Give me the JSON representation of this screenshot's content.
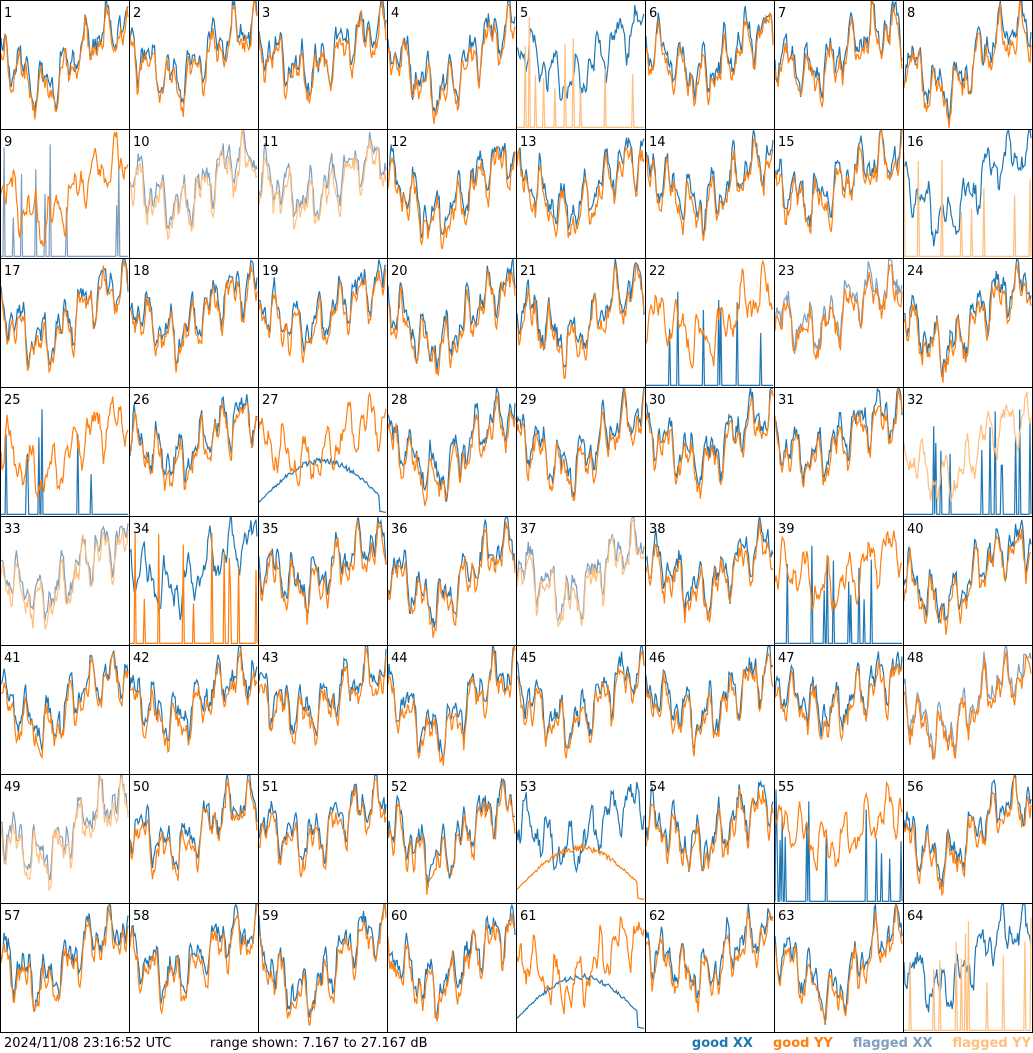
{
  "panels": [
    {
      "label": "1",
      "xx": "good",
      "yy": "good",
      "xx_mode": "normal",
      "yy_mode": "normal"
    },
    {
      "label": "2",
      "xx": "good",
      "yy": "good",
      "xx_mode": "normal",
      "yy_mode": "normal"
    },
    {
      "label": "3",
      "xx": "good",
      "yy": "good",
      "xx_mode": "normal",
      "yy_mode": "normal"
    },
    {
      "label": "4",
      "xx": "good",
      "yy": "good",
      "xx_mode": "normal",
      "yy_mode": "normal"
    },
    {
      "label": "5",
      "xx": "good",
      "yy": "flagged",
      "xx_mode": "normal",
      "yy_mode": "spiky"
    },
    {
      "label": "6",
      "xx": "good",
      "yy": "good",
      "xx_mode": "normal",
      "yy_mode": "normal"
    },
    {
      "label": "7",
      "xx": "good",
      "yy": "good",
      "xx_mode": "normal",
      "yy_mode": "normal"
    },
    {
      "label": "8",
      "xx": "good",
      "yy": "good",
      "xx_mode": "normal",
      "yy_mode": "normal"
    },
    {
      "label": "9",
      "xx": "flagged",
      "yy": "good",
      "xx_mode": "spiky",
      "yy_mode": "normal"
    },
    {
      "label": "10",
      "xx": "flagged",
      "yy": "flagged",
      "xx_mode": "normal",
      "yy_mode": "normal"
    },
    {
      "label": "11",
      "xx": "flagged",
      "yy": "flagged",
      "xx_mode": "normal",
      "yy_mode": "normal"
    },
    {
      "label": "12",
      "xx": "good",
      "yy": "good",
      "xx_mode": "normal",
      "yy_mode": "normal"
    },
    {
      "label": "13",
      "xx": "good",
      "yy": "good",
      "xx_mode": "normal",
      "yy_mode": "normal"
    },
    {
      "label": "14",
      "xx": "good",
      "yy": "good",
      "xx_mode": "normal",
      "yy_mode": "normal"
    },
    {
      "label": "15",
      "xx": "good",
      "yy": "good",
      "xx_mode": "normal",
      "yy_mode": "normal"
    },
    {
      "label": "16",
      "xx": "good",
      "yy": "flagged",
      "xx_mode": "normal",
      "yy_mode": "spiky"
    },
    {
      "label": "17",
      "xx": "good",
      "yy": "good",
      "xx_mode": "normal",
      "yy_mode": "normal"
    },
    {
      "label": "18",
      "xx": "good",
      "yy": "good",
      "xx_mode": "normal",
      "yy_mode": "normal"
    },
    {
      "label": "19",
      "xx": "good",
      "yy": "good",
      "xx_mode": "normal",
      "yy_mode": "normal"
    },
    {
      "label": "20",
      "xx": "good",
      "yy": "good",
      "xx_mode": "normal",
      "yy_mode": "normal"
    },
    {
      "label": "21",
      "xx": "good",
      "yy": "good",
      "xx_mode": "normal",
      "yy_mode": "normal"
    },
    {
      "label": "22",
      "xx": "good",
      "yy": "good",
      "xx_mode": "spiky",
      "yy_mode": "normal"
    },
    {
      "label": "23",
      "xx": "flagged",
      "yy": "good",
      "xx_mode": "normal",
      "yy_mode": "normal"
    },
    {
      "label": "24",
      "xx": "good",
      "yy": "good",
      "xx_mode": "normal",
      "yy_mode": "normal"
    },
    {
      "label": "25",
      "xx": "good",
      "yy": "good",
      "xx_mode": "spiky",
      "yy_mode": "normal"
    },
    {
      "label": "26",
      "xx": "good",
      "yy": "good",
      "xx_mode": "normal",
      "yy_mode": "normal"
    },
    {
      "label": "27",
      "xx": "good",
      "yy": "good",
      "xx_mode": "smooth",
      "yy_mode": "normal"
    },
    {
      "label": "28",
      "xx": "good",
      "yy": "good",
      "xx_mode": "normal",
      "yy_mode": "normal"
    },
    {
      "label": "29",
      "xx": "good",
      "yy": "good",
      "xx_mode": "normal",
      "yy_mode": "normal"
    },
    {
      "label": "30",
      "xx": "good",
      "yy": "good",
      "xx_mode": "normal",
      "yy_mode": "normal"
    },
    {
      "label": "31",
      "xx": "good",
      "yy": "good",
      "xx_mode": "normal",
      "yy_mode": "normal"
    },
    {
      "label": "32",
      "xx": "good",
      "yy": "flagged",
      "xx_mode": "spiky",
      "yy_mode": "normal"
    },
    {
      "label": "33",
      "xx": "flagged",
      "yy": "flagged",
      "xx_mode": "normal",
      "yy_mode": "normal"
    },
    {
      "label": "34",
      "xx": "good",
      "yy": "good",
      "xx_mode": "normal",
      "yy_mode": "spiky"
    },
    {
      "label": "35",
      "xx": "good",
      "yy": "good",
      "xx_mode": "normal",
      "yy_mode": "normal"
    },
    {
      "label": "36",
      "xx": "good",
      "yy": "good",
      "xx_mode": "normal",
      "yy_mode": "normal"
    },
    {
      "label": "37",
      "xx": "flagged",
      "yy": "flagged",
      "xx_mode": "normal",
      "yy_mode": "normal"
    },
    {
      "label": "38",
      "xx": "good",
      "yy": "good",
      "xx_mode": "normal",
      "yy_mode": "normal"
    },
    {
      "label": "39",
      "xx": "good",
      "yy": "good",
      "xx_mode": "spiky",
      "yy_mode": "normal"
    },
    {
      "label": "40",
      "xx": "good",
      "yy": "good",
      "xx_mode": "normal",
      "yy_mode": "normal"
    },
    {
      "label": "41",
      "xx": "good",
      "yy": "good",
      "xx_mode": "normal",
      "yy_mode": "normal"
    },
    {
      "label": "42",
      "xx": "good",
      "yy": "good",
      "xx_mode": "normal",
      "yy_mode": "normal"
    },
    {
      "label": "43",
      "xx": "good",
      "yy": "good",
      "xx_mode": "normal",
      "yy_mode": "normal"
    },
    {
      "label": "44",
      "xx": "good",
      "yy": "good",
      "xx_mode": "normal",
      "yy_mode": "normal"
    },
    {
      "label": "45",
      "xx": "good",
      "yy": "good",
      "xx_mode": "normal",
      "yy_mode": "normal"
    },
    {
      "label": "46",
      "xx": "good",
      "yy": "good",
      "xx_mode": "normal",
      "yy_mode": "normal"
    },
    {
      "label": "47",
      "xx": "good",
      "yy": "good",
      "xx_mode": "normal",
      "yy_mode": "normal"
    },
    {
      "label": "48",
      "xx": "flagged",
      "yy": "good",
      "xx_mode": "normal",
      "yy_mode": "normal"
    },
    {
      "label": "49",
      "xx": "flagged",
      "yy": "flagged",
      "xx_mode": "normal",
      "yy_mode": "normal"
    },
    {
      "label": "50",
      "xx": "good",
      "yy": "good",
      "xx_mode": "normal",
      "yy_mode": "normal"
    },
    {
      "label": "51",
      "xx": "good",
      "yy": "good",
      "xx_mode": "normal",
      "yy_mode": "normal"
    },
    {
      "label": "52",
      "xx": "good",
      "yy": "good",
      "xx_mode": "normal",
      "yy_mode": "normal"
    },
    {
      "label": "53",
      "xx": "good",
      "yy": "good",
      "xx_mode": "normal",
      "yy_mode": "smooth"
    },
    {
      "label": "54",
      "xx": "good",
      "yy": "good",
      "xx_mode": "normal",
      "yy_mode": "normal"
    },
    {
      "label": "55",
      "xx": "good",
      "yy": "good",
      "xx_mode": "spiky",
      "yy_mode": "normal"
    },
    {
      "label": "56",
      "xx": "good",
      "yy": "good",
      "xx_mode": "normal",
      "yy_mode": "normal"
    },
    {
      "label": "57",
      "xx": "good",
      "yy": "good",
      "xx_mode": "normal",
      "yy_mode": "normal"
    },
    {
      "label": "58",
      "xx": "good",
      "yy": "good",
      "xx_mode": "normal",
      "yy_mode": "normal"
    },
    {
      "label": "59",
      "xx": "good",
      "yy": "good",
      "xx_mode": "normal",
      "yy_mode": "normal"
    },
    {
      "label": "60",
      "xx": "good",
      "yy": "good",
      "xx_mode": "normal",
      "yy_mode": "normal"
    },
    {
      "label": "61",
      "xx": "good",
      "yy": "good",
      "xx_mode": "smooth",
      "yy_mode": "normal"
    },
    {
      "label": "62",
      "xx": "good",
      "yy": "good",
      "xx_mode": "normal",
      "yy_mode": "normal"
    },
    {
      "label": "63",
      "xx": "good",
      "yy": "good",
      "xx_mode": "normal",
      "yy_mode": "normal"
    },
    {
      "label": "64",
      "xx": "good",
      "yy": "flagged",
      "xx_mode": "normal",
      "yy_mode": "spiky"
    }
  ],
  "footer": {
    "timestamp": "2024/11/08 23:16:52 UTC",
    "range": "range shown: 7.167 to 27.167 dB"
  },
  "legend": [
    {
      "key": "good XX",
      "label": "good XX",
      "color": "#1f77b4"
    },
    {
      "key": "good YY",
      "label": "good YY",
      "color": "#ff7f0e"
    },
    {
      "key": "flagged XX",
      "label": "flagged XX",
      "color": "#7f9fbf"
    },
    {
      "key": "flagged YY",
      "label": "flagged YY",
      "color": "#ffbf7f"
    }
  ]
}
